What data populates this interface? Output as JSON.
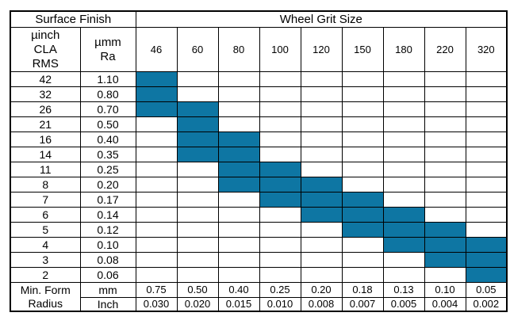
{
  "table": {
    "fill_color": "#0e76a3",
    "header": {
      "surface_finish": "Surface Finish",
      "wheel_grit_size": "Wheel Grit Size",
      "uinch_label": "µinch\nCLA\nRMS",
      "umm_label": "µmm\nRa",
      "grit_sizes": [
        "46",
        "60",
        "80",
        "100",
        "120",
        "150",
        "180",
        "220",
        "320"
      ]
    },
    "rows": [
      {
        "uinch": "42",
        "umm": "1.10",
        "filled": [
          1,
          0,
          0,
          0,
          0,
          0,
          0,
          0,
          0
        ]
      },
      {
        "uinch": "32",
        "umm": "0.80",
        "filled": [
          1,
          0,
          0,
          0,
          0,
          0,
          0,
          0,
          0
        ]
      },
      {
        "uinch": "26",
        "umm": "0.70",
        "filled": [
          1,
          1,
          0,
          0,
          0,
          0,
          0,
          0,
          0
        ]
      },
      {
        "uinch": "21",
        "umm": "0.50",
        "filled": [
          0,
          1,
          0,
          0,
          0,
          0,
          0,
          0,
          0
        ]
      },
      {
        "uinch": "16",
        "umm": "0.40",
        "filled": [
          0,
          1,
          1,
          0,
          0,
          0,
          0,
          0,
          0
        ]
      },
      {
        "uinch": "14",
        "umm": "0.35",
        "filled": [
          0,
          1,
          1,
          0,
          0,
          0,
          0,
          0,
          0
        ]
      },
      {
        "uinch": "11",
        "umm": "0.25",
        "filled": [
          0,
          0,
          1,
          1,
          0,
          0,
          0,
          0,
          0
        ]
      },
      {
        "uinch": "8",
        "umm": "0.20",
        "filled": [
          0,
          0,
          1,
          1,
          1,
          0,
          0,
          0,
          0
        ]
      },
      {
        "uinch": "7",
        "umm": "0.17",
        "filled": [
          0,
          0,
          0,
          1,
          1,
          1,
          0,
          0,
          0
        ]
      },
      {
        "uinch": "6",
        "umm": "0.14",
        "filled": [
          0,
          0,
          0,
          0,
          1,
          1,
          1,
          0,
          0
        ]
      },
      {
        "uinch": "5",
        "umm": "0.12",
        "filled": [
          0,
          0,
          0,
          0,
          0,
          1,
          1,
          1,
          0
        ]
      },
      {
        "uinch": "4",
        "umm": "0.10",
        "filled": [
          0,
          0,
          0,
          0,
          0,
          0,
          1,
          1,
          1
        ]
      },
      {
        "uinch": "3",
        "umm": "0.08",
        "filled": [
          0,
          0,
          0,
          0,
          0,
          0,
          0,
          1,
          1
        ]
      },
      {
        "uinch": "2",
        "umm": "0.06",
        "filled": [
          0,
          0,
          0,
          0,
          0,
          0,
          0,
          0,
          1
        ]
      }
    ],
    "footer": {
      "label": "Min. Form\nRadius",
      "mm_label": "mm",
      "inch_label": "Inch",
      "mm_values": [
        "0.75",
        "0.50",
        "0.40",
        "0.25",
        "0.20",
        "0.18",
        "0.13",
        "0.10",
        "0.05"
      ],
      "inch_values": [
        "0.030",
        "0.020",
        "0.015",
        "0.010",
        "0.008",
        "0.007",
        "0.005",
        "0.004",
        "0.002"
      ]
    }
  }
}
